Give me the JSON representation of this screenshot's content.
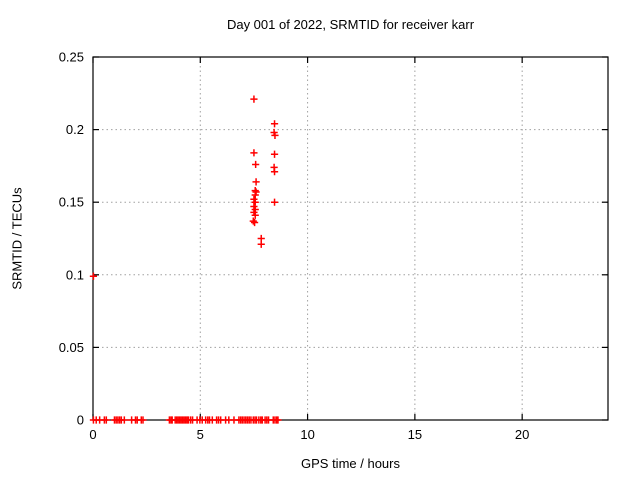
{
  "colors": {
    "marker": "#ff0000",
    "axis": "#000000",
    "grid": "#a0a0a0",
    "background": "#ffffff",
    "text": "#000000"
  },
  "chart_data": {
    "type": "scatter",
    "title": "Day 001 of 2022, SRMTID for receiver karr",
    "xlabel": "GPS time / hours",
    "ylabel": "SRMTID / TECUs",
    "xlim": [
      0,
      24
    ],
    "ylim": [
      0,
      0.25
    ],
    "grid": true,
    "legend": false,
    "marker": "plus",
    "xticks": [
      {
        "value": 0,
        "label": "0"
      },
      {
        "value": 5,
        "label": "5"
      },
      {
        "value": 10,
        "label": "10"
      },
      {
        "value": 15,
        "label": "15"
      },
      {
        "value": 20,
        "label": "20"
      }
    ],
    "yticks": [
      {
        "value": 0,
        "label": "0"
      },
      {
        "value": 0.05,
        "label": "0.05"
      },
      {
        "value": 0.1,
        "label": "0.1"
      },
      {
        "value": 0.15,
        "label": "0.15"
      },
      {
        "value": 0.2,
        "label": "0.2"
      },
      {
        "value": 0.25,
        "label": "0.25"
      }
    ],
    "series": [
      {
        "name": "SRMTID",
        "color": "#ff0000",
        "points": [
          [
            0.02,
            0
          ],
          [
            0.15,
            0
          ],
          [
            0.31,
            0
          ],
          [
            0.53,
            0
          ],
          [
            0.62,
            0
          ],
          [
            1.0,
            0
          ],
          [
            1.08,
            0
          ],
          [
            1.16,
            0
          ],
          [
            1.24,
            0
          ],
          [
            1.32,
            0
          ],
          [
            1.46,
            0
          ],
          [
            1.8,
            0
          ],
          [
            1.98,
            0
          ],
          [
            2.06,
            0
          ],
          [
            2.25,
            0
          ],
          [
            2.33,
            0
          ],
          [
            3.56,
            0
          ],
          [
            3.63,
            0
          ],
          [
            3.69,
            0
          ],
          [
            3.83,
            0
          ],
          [
            3.9,
            0
          ],
          [
            3.97,
            0
          ],
          [
            4.04,
            0
          ],
          [
            4.11,
            0
          ],
          [
            4.18,
            0
          ],
          [
            4.25,
            0
          ],
          [
            4.32,
            0
          ],
          [
            4.39,
            0
          ],
          [
            4.45,
            0
          ],
          [
            4.55,
            0
          ],
          [
            4.64,
            0
          ],
          [
            4.85,
            0
          ],
          [
            4.98,
            0
          ],
          [
            5.09,
            0
          ],
          [
            5.25,
            0
          ],
          [
            5.35,
            0
          ],
          [
            5.43,
            0
          ],
          [
            5.56,
            0
          ],
          [
            5.76,
            0
          ],
          [
            5.85,
            0
          ],
          [
            5.95,
            0
          ],
          [
            6.18,
            0
          ],
          [
            6.33,
            0
          ],
          [
            6.57,
            0
          ],
          [
            6.8,
            0
          ],
          [
            6.88,
            0
          ],
          [
            6.96,
            0
          ],
          [
            7.04,
            0
          ],
          [
            7.12,
            0
          ],
          [
            7.2,
            0
          ],
          [
            7.28,
            0
          ],
          [
            7.36,
            0
          ],
          [
            7.47,
            0
          ],
          [
            7.55,
            0
          ],
          [
            7.62,
            0
          ],
          [
            7.73,
            0
          ],
          [
            7.82,
            0
          ],
          [
            7.89,
            0
          ],
          [
            8.02,
            0
          ],
          [
            8.1,
            0
          ],
          [
            8.18,
            0
          ],
          [
            8.4,
            0
          ],
          [
            8.48,
            0
          ],
          [
            8.56,
            0
          ],
          [
            8.62,
            0
          ],
          [
            0.02,
            0.099
          ],
          [
            7.5,
            0.221
          ],
          [
            8.46,
            0.204
          ],
          [
            8.44,
            0.198
          ],
          [
            8.48,
            0.196
          ],
          [
            7.5,
            0.184
          ],
          [
            8.46,
            0.183
          ],
          [
            7.58,
            0.176
          ],
          [
            8.44,
            0.174
          ],
          [
            8.46,
            0.171
          ],
          [
            7.6,
            0.164
          ],
          [
            7.56,
            0.158
          ],
          [
            7.6,
            0.157
          ],
          [
            7.56,
            0.155
          ],
          [
            7.5,
            0.152
          ],
          [
            7.56,
            0.15
          ],
          [
            8.46,
            0.15
          ],
          [
            7.5,
            0.147
          ],
          [
            7.56,
            0.145
          ],
          [
            7.5,
            0.143
          ],
          [
            7.56,
            0.141
          ],
          [
            7.47,
            0.137
          ],
          [
            7.53,
            0.136
          ],
          [
            7.84,
            0.125
          ],
          [
            7.84,
            0.121
          ]
        ]
      }
    ]
  }
}
